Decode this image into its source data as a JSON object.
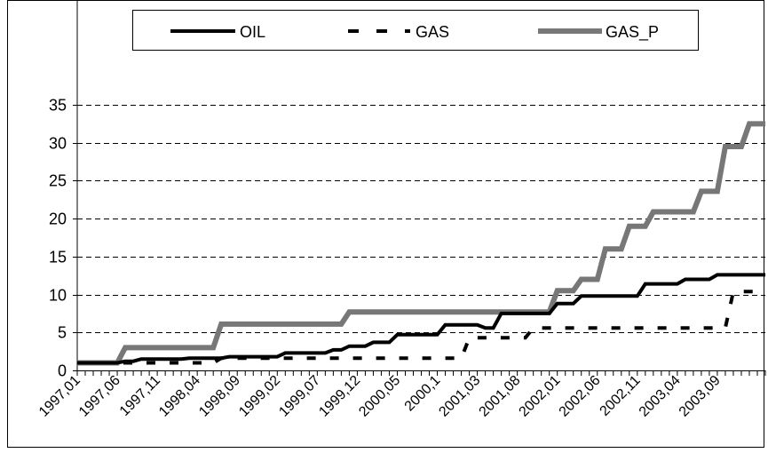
{
  "chart_data": {
    "type": "line",
    "title": "",
    "xlabel": "",
    "ylabel": "",
    "ylim": [
      0,
      35
    ],
    "yticks": [
      0,
      5,
      10,
      15,
      20,
      25,
      30,
      35
    ],
    "grid": "horizontal dashed",
    "legend_position": "top",
    "x_tick_labels": [
      "1997,01",
      "1997,06",
      "1997,11",
      "1998,04",
      "1998,09",
      "1999,02",
      "1999,07",
      "1999,12",
      "2000,05",
      "2000,1",
      "2001,03",
      "2001,08",
      "2002,01",
      "2002,06",
      "2002,11",
      "2003,04",
      "2003,09"
    ],
    "period_count": 87,
    "period_labels_every": 5,
    "series": [
      {
        "name": "OIL",
        "style": "solid",
        "color": "#000000",
        "steps": [
          [
            0,
            1
          ],
          [
            6,
            1.2
          ],
          [
            8,
            1.5
          ],
          [
            14,
            1.6
          ],
          [
            19,
            1.8
          ],
          [
            26,
            2.3
          ],
          [
            32,
            2.7
          ],
          [
            34,
            3.2
          ],
          [
            37,
            3.7
          ],
          [
            40,
            4.7
          ],
          [
            46,
            6
          ],
          [
            51,
            5.6
          ],
          [
            53,
            7.5
          ],
          [
            60,
            8.8
          ],
          [
            63,
            9.8
          ],
          [
            71,
            11.4
          ],
          [
            76,
            12
          ],
          [
            80,
            12.6
          ]
        ]
      },
      {
        "name": "GAS",
        "style": "dashed",
        "color": "#000000",
        "steps": [
          [
            0,
            1
          ],
          [
            18,
            1.6
          ],
          [
            34,
            1.6
          ],
          [
            49,
            4.3
          ],
          [
            57,
            5.6
          ],
          [
            82,
            10.4
          ]
        ]
      },
      {
        "name": "GAS_P",
        "style": "thick-gray",
        "color": "#777777",
        "steps": [
          [
            0,
            1
          ],
          [
            6,
            3
          ],
          [
            18,
            6.1
          ],
          [
            34,
            7.7
          ],
          [
            60,
            10.5
          ],
          [
            63,
            12
          ],
          [
            66,
            16
          ],
          [
            69,
            19
          ],
          [
            72,
            20.9
          ],
          [
            78,
            23.6
          ],
          [
            81,
            29.5
          ],
          [
            84,
            32.5
          ]
        ]
      }
    ]
  }
}
